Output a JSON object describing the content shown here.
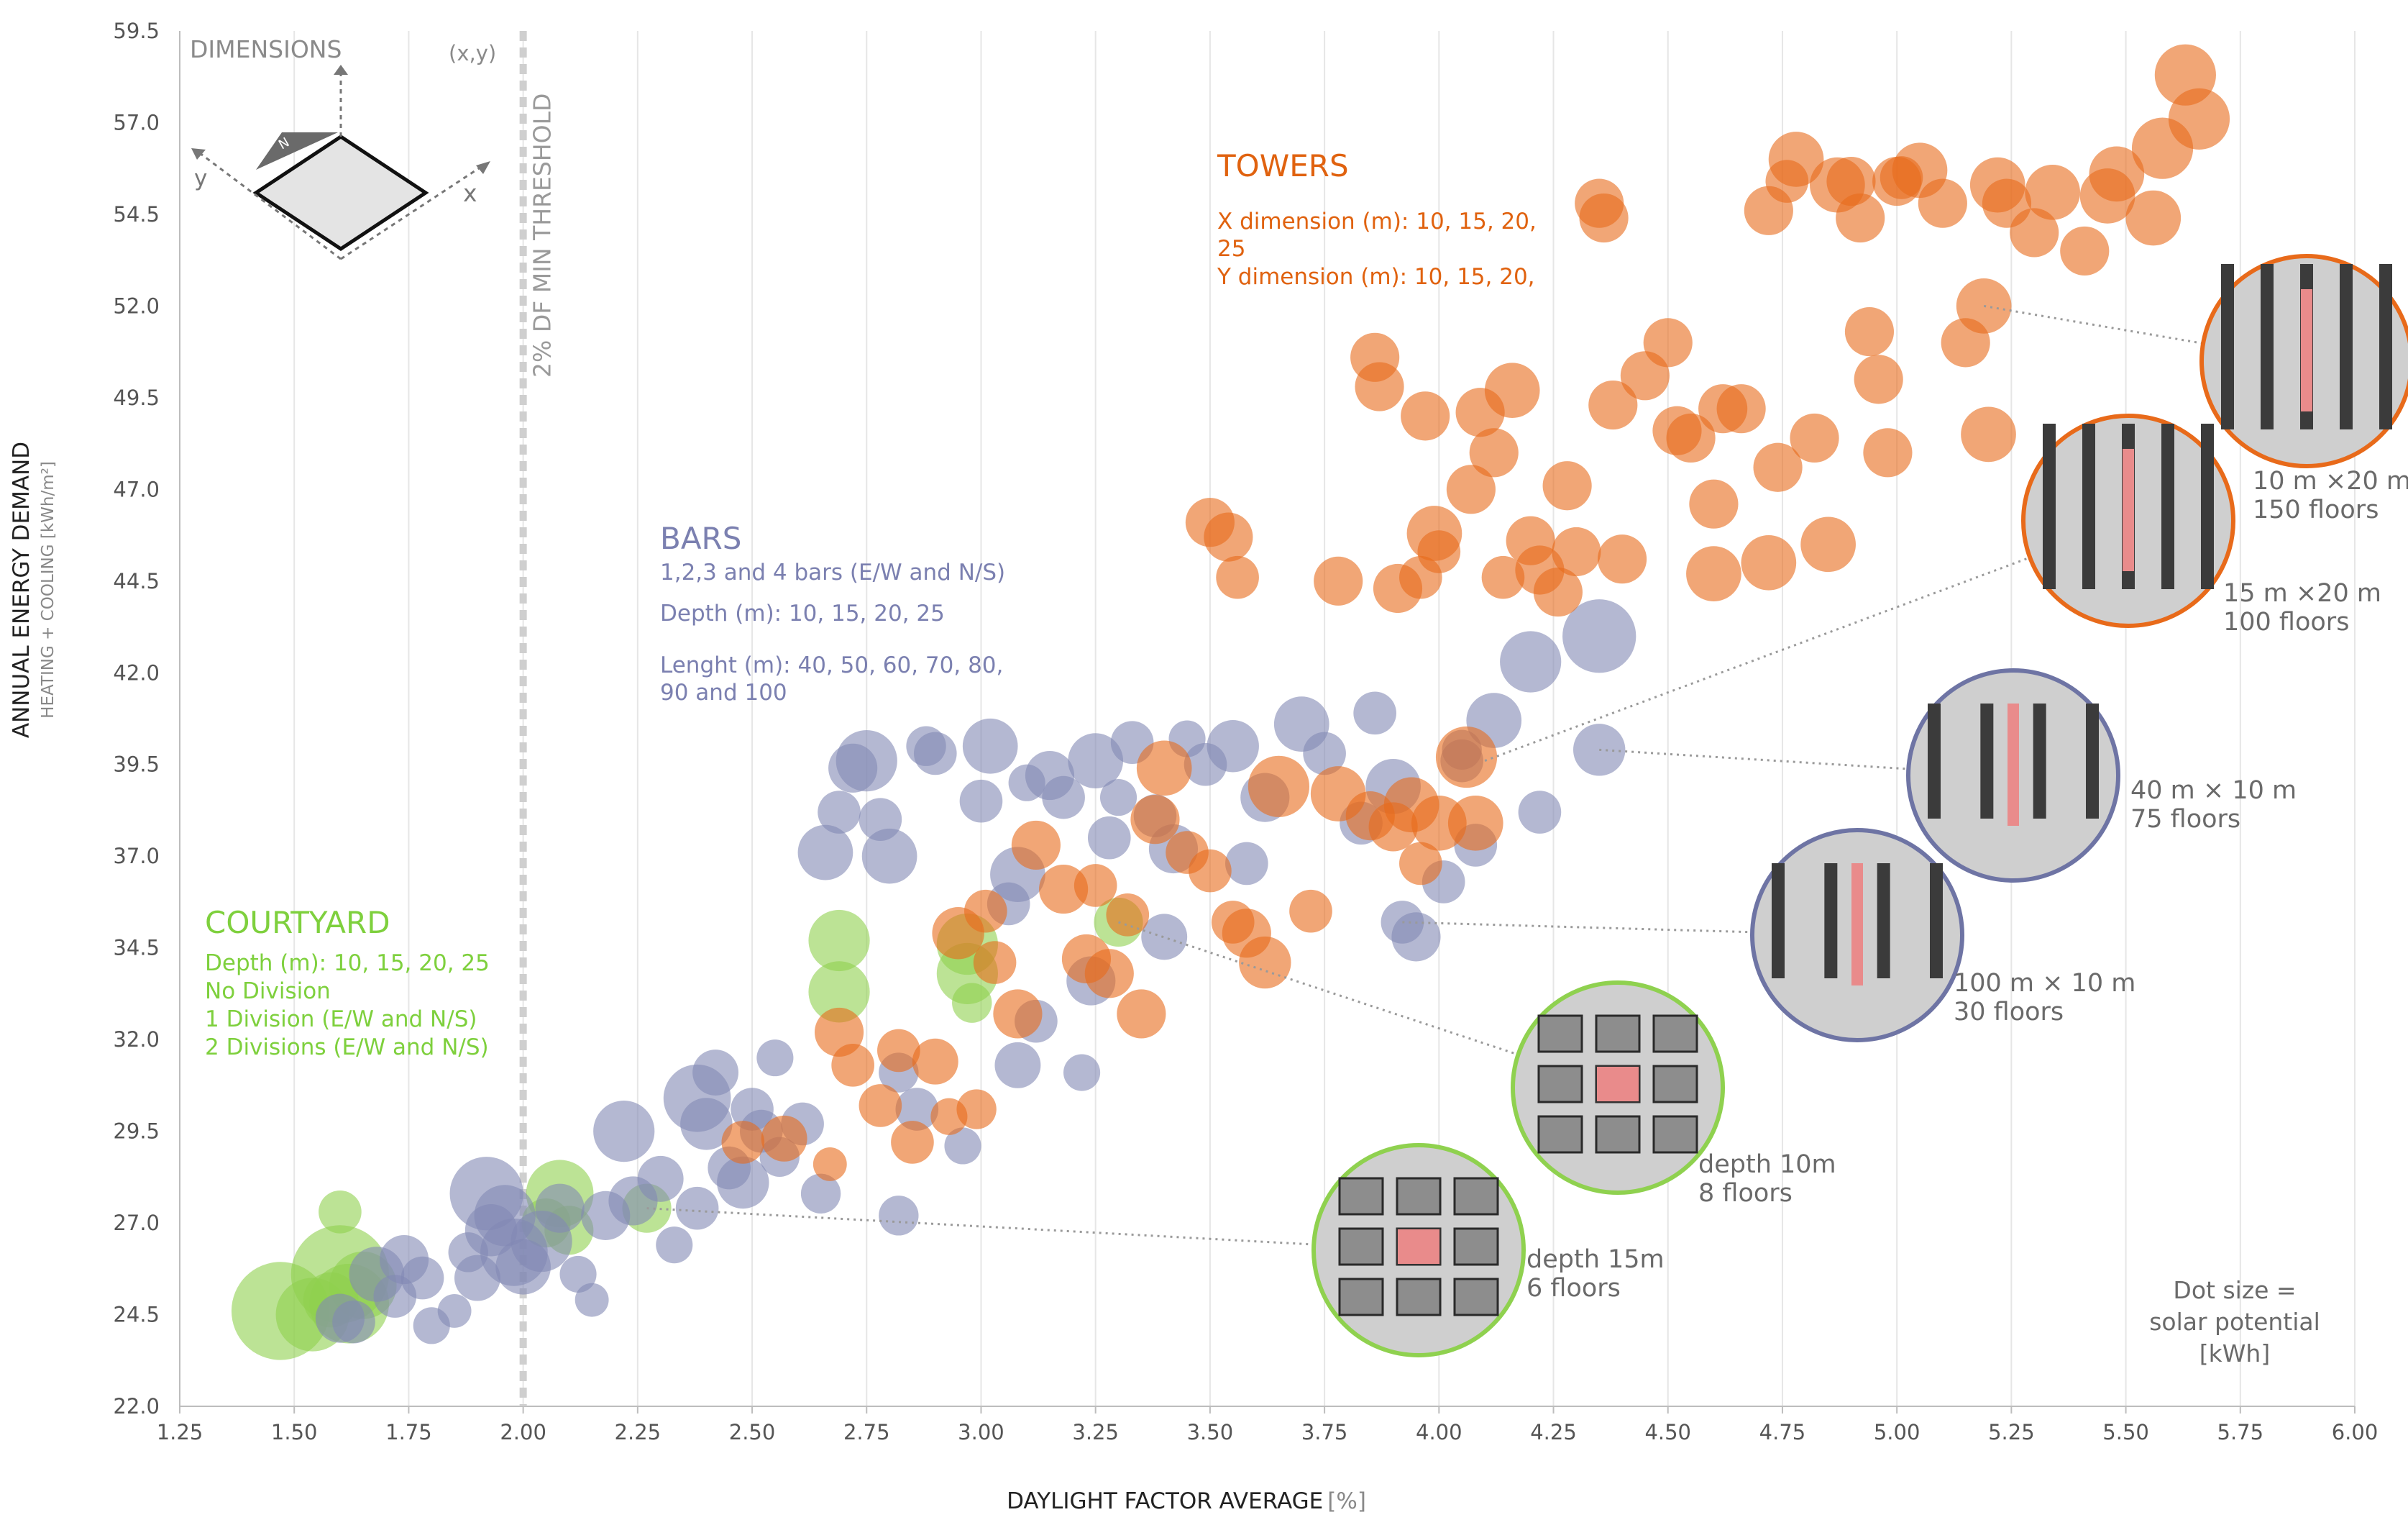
{
  "chart_data": {
    "type": "scatter",
    "xlabel": "DAYLIGHT FACTOR AVERAGE",
    "xlabel_unit": "[%]",
    "ylabel": "ANNUAL ENERGY DEMAND",
    "ylabel_sub": "HEATING + COOLING [kWh/m²]",
    "xlim": [
      1.25,
      6.0
    ],
    "ylim": [
      22.0,
      59.5
    ],
    "x_ticks": [
      "1.25",
      "1.50",
      "1.75",
      "2.00",
      "2.25",
      "2.50",
      "2.75",
      "3.00",
      "3.25",
      "3.50",
      "3.75",
      "4.00",
      "4.25",
      "4.50",
      "4.75",
      "5.00",
      "5.25",
      "5.50",
      "5.75",
      "6.00"
    ],
    "y_ticks": [
      "22.0",
      "24.5",
      "27.0",
      "29.5",
      "32.0",
      "34.5",
      "37.0",
      "39.5",
      "42.0",
      "44.5",
      "47.0",
      "49.5",
      "52.0",
      "54.5",
      "57.0",
      "59.5"
    ],
    "grid": "vertical",
    "threshold": {
      "x": 2.0,
      "label": "2% DF MIN THRESHOLD"
    },
    "dimensions_label": "DIMENSIONS",
    "xy_label": "(x,y)",
    "axis_x_letter": "x",
    "axis_y_letter": "y",
    "north_letter": "N",
    "groups": [
      {
        "name": "COURTYARD",
        "color": "#8fd14f",
        "lines": [
          "Depth (m): 10, 15, 20, 25",
          "No Division",
          "1 Division (E/W and N/S)",
          "2 Divisions (E/W and N/S)"
        ]
      },
      {
        "name": "BARS",
        "color": "#8288b4",
        "lines": [
          "1,2,3 and 4 bars (E/W and N/S)",
          "Depth (m): 10, 15, 20, 25",
          "Lenght (m): 40, 50, 60, 70, 80,",
          "90  and 100"
        ]
      },
      {
        "name": "TOWERS",
        "color": "#e86a1a",
        "lines": [
          "X dimension (m): 10, 15, 20,",
          "25",
          "Y dimension (m): 10, 15, 20,"
        ]
      }
    ],
    "series": [
      {
        "name": "COURTYARD",
        "color": "#8fd14f",
        "points": [
          [
            1.47,
            24.6,
            32
          ],
          [
            1.54,
            24.5,
            24
          ],
          [
            1.6,
            25.6,
            32
          ],
          [
            1.62,
            24.8,
            26
          ],
          [
            1.65,
            25.3,
            22
          ],
          [
            1.6,
            27.3,
            14
          ],
          [
            1.58,
            24.9,
            18
          ],
          [
            2.08,
            27.8,
            22
          ],
          [
            2.1,
            26.8,
            16
          ],
          [
            2.05,
            27.0,
            16
          ],
          [
            2.27,
            27.4,
            16
          ],
          [
            2.69,
            34.7,
            20
          ],
          [
            2.69,
            33.3,
            20
          ],
          [
            2.97,
            34.6,
            20
          ],
          [
            2.97,
            33.8,
            20
          ],
          [
            2.98,
            33.0,
            13
          ],
          [
            3.3,
            35.2,
            16
          ]
        ]
      },
      {
        "name": "BARS",
        "color": "#8288b4",
        "points": [
          [
            1.6,
            24.4,
            16
          ],
          [
            1.63,
            24.3,
            14
          ],
          [
            1.68,
            25.6,
            18
          ],
          [
            1.74,
            26.0,
            16
          ],
          [
            1.72,
            25.0,
            14
          ],
          [
            1.78,
            25.5,
            14
          ],
          [
            1.8,
            24.2,
            12
          ],
          [
            1.85,
            24.6,
            11
          ],
          [
            1.88,
            26.2,
            13
          ],
          [
            1.9,
            25.5,
            15
          ],
          [
            1.93,
            26.8,
            17
          ],
          [
            1.92,
            27.8,
            24
          ],
          [
            1.96,
            27.2,
            20
          ],
          [
            1.98,
            26.2,
            22
          ],
          [
            2.0,
            25.8,
            18
          ],
          [
            2.04,
            26.5,
            20
          ],
          [
            2.08,
            27.4,
            16
          ],
          [
            2.12,
            25.6,
            12
          ],
          [
            2.15,
            24.9,
            11
          ],
          [
            2.18,
            27.2,
            16
          ],
          [
            2.22,
            29.5,
            20
          ],
          [
            2.24,
            27.6,
            16
          ],
          [
            2.3,
            28.2,
            15
          ],
          [
            2.33,
            26.4,
            12
          ],
          [
            2.38,
            30.4,
            22
          ],
          [
            2.38,
            27.4,
            14
          ],
          [
            2.4,
            29.7,
            17
          ],
          [
            2.42,
            31.1,
            15
          ],
          [
            2.45,
            28.5,
            14
          ],
          [
            2.48,
            28.1,
            17
          ],
          [
            2.5,
            30.1,
            14
          ],
          [
            2.52,
            29.5,
            14
          ],
          [
            2.55,
            31.5,
            12
          ],
          [
            2.56,
            28.8,
            13
          ],
          [
            2.61,
            29.7,
            14
          ],
          [
            2.65,
            27.8,
            13
          ],
          [
            2.66,
            37.1,
            18
          ],
          [
            2.69,
            38.2,
            14
          ],
          [
            2.72,
            39.4,
            16
          ],
          [
            2.75,
            39.6,
            20
          ],
          [
            2.78,
            38.0,
            14
          ],
          [
            2.8,
            37.0,
            18
          ],
          [
            2.82,
            31.1,
            13
          ],
          [
            2.82,
            27.2,
            13
          ],
          [
            2.86,
            30.1,
            14
          ],
          [
            2.88,
            40.0,
            13
          ],
          [
            2.9,
            39.8,
            14
          ],
          [
            2.96,
            29.1,
            12
          ],
          [
            3.0,
            38.5,
            14
          ],
          [
            3.02,
            40.0,
            18
          ],
          [
            3.06,
            35.7,
            14
          ],
          [
            3.08,
            36.5,
            18
          ],
          [
            3.08,
            31.3,
            15
          ],
          [
            3.1,
            39.0,
            12
          ],
          [
            3.12,
            32.5,
            14
          ],
          [
            3.15,
            39.2,
            16
          ],
          [
            3.18,
            38.6,
            14
          ],
          [
            3.22,
            31.1,
            12
          ],
          [
            3.24,
            33.6,
            16
          ],
          [
            3.25,
            39.6,
            18
          ],
          [
            3.28,
            37.5,
            14
          ],
          [
            3.3,
            38.6,
            12
          ],
          [
            3.33,
            40.1,
            14
          ],
          [
            3.38,
            38.1,
            14
          ],
          [
            3.4,
            34.8,
            15
          ],
          [
            3.42,
            37.2,
            16
          ],
          [
            3.45,
            40.2,
            12
          ],
          [
            3.49,
            39.5,
            14
          ],
          [
            3.55,
            40.0,
            17
          ],
          [
            3.58,
            36.8,
            14
          ],
          [
            3.62,
            38.6,
            16
          ],
          [
            3.7,
            40.6,
            18
          ],
          [
            3.75,
            39.8,
            14
          ],
          [
            3.83,
            37.9,
            14
          ],
          [
            3.86,
            40.9,
            14
          ],
          [
            3.9,
            38.9,
            18
          ],
          [
            3.92,
            35.2,
            14
          ],
          [
            3.95,
            34.8,
            16
          ],
          [
            4.01,
            36.3,
            14
          ],
          [
            4.05,
            39.6,
            14
          ],
          [
            4.05,
            39.9,
            13
          ],
          [
            4.08,
            37.3,
            14
          ],
          [
            4.12,
            40.7,
            18
          ],
          [
            4.2,
            42.3,
            20
          ],
          [
            4.22,
            38.2,
            14
          ],
          [
            4.35,
            39.9,
            17
          ],
          [
            4.35,
            43.0,
            24
          ]
        ]
      },
      {
        "name": "TOWERS",
        "color": "#e86a1a",
        "points": [
          [
            2.48,
            29.2,
            14
          ],
          [
            2.57,
            29.3,
            15
          ],
          [
            2.67,
            28.6,
            11
          ],
          [
            2.69,
            32.2,
            16
          ],
          [
            2.72,
            31.3,
            14
          ],
          [
            2.78,
            30.2,
            14
          ],
          [
            2.82,
            31.7,
            14
          ],
          [
            2.85,
            29.2,
            14
          ],
          [
            2.9,
            31.4,
            15
          ],
          [
            2.93,
            29.9,
            12
          ],
          [
            2.95,
            34.9,
            17
          ],
          [
            2.99,
            30.1,
            13
          ],
          [
            3.01,
            35.5,
            14
          ],
          [
            3.03,
            34.1,
            14
          ],
          [
            3.08,
            32.7,
            16
          ],
          [
            3.12,
            37.3,
            16
          ],
          [
            3.18,
            36.1,
            16
          ],
          [
            3.23,
            34.2,
            16
          ],
          [
            3.25,
            36.2,
            14
          ],
          [
            3.28,
            33.8,
            16
          ],
          [
            3.32,
            35.4,
            14
          ],
          [
            3.35,
            32.7,
            16
          ],
          [
            3.38,
            38.0,
            16
          ],
          [
            3.4,
            39.4,
            18
          ],
          [
            3.45,
            37.1,
            14
          ],
          [
            3.5,
            36.6,
            14
          ],
          [
            3.55,
            35.2,
            14
          ],
          [
            3.58,
            34.9,
            16
          ],
          [
            3.62,
            34.1,
            17
          ],
          [
            3.65,
            38.9,
            20
          ],
          [
            3.72,
            35.5,
            14
          ],
          [
            3.78,
            38.7,
            18
          ],
          [
            3.85,
            38.1,
            16
          ],
          [
            3.9,
            37.8,
            16
          ],
          [
            3.94,
            38.4,
            18
          ],
          [
            3.96,
            36.8,
            14
          ],
          [
            4.0,
            37.9,
            18
          ],
          [
            4.06,
            39.7,
            20
          ],
          [
            4.08,
            37.9,
            18
          ],
          [
            3.5,
            46.1,
            16
          ],
          [
            3.54,
            45.7,
            16
          ],
          [
            3.56,
            44.6,
            14
          ],
          [
            3.78,
            44.5,
            16
          ],
          [
            3.86,
            50.6,
            16
          ],
          [
            3.87,
            49.8,
            16
          ],
          [
            3.91,
            44.3,
            16
          ],
          [
            3.96,
            44.6,
            14
          ],
          [
            3.97,
            49.0,
            16
          ],
          [
            3.99,
            45.8,
            18
          ],
          [
            4.0,
            45.3,
            14
          ],
          [
            4.07,
            47.0,
            16
          ],
          [
            4.09,
            49.1,
            16
          ],
          [
            4.12,
            48.0,
            16
          ],
          [
            4.14,
            44.6,
            14
          ],
          [
            4.16,
            49.7,
            18
          ],
          [
            4.2,
            45.6,
            16
          ],
          [
            4.22,
            44.8,
            16
          ],
          [
            4.26,
            44.2,
            16
          ],
          [
            4.28,
            47.1,
            16
          ],
          [
            4.3,
            45.3,
            16
          ],
          [
            4.35,
            54.8,
            16
          ],
          [
            4.36,
            54.4,
            16
          ],
          [
            4.38,
            49.3,
            16
          ],
          [
            4.4,
            45.1,
            16
          ],
          [
            4.45,
            50.1,
            16
          ],
          [
            4.5,
            51.0,
            16
          ],
          [
            4.52,
            48.6,
            16
          ],
          [
            4.55,
            48.4,
            16
          ],
          [
            4.6,
            44.7,
            18
          ],
          [
            4.6,
            46.6,
            16
          ],
          [
            4.62,
            49.2,
            16
          ],
          [
            4.66,
            49.2,
            16
          ],
          [
            4.72,
            54.6,
            16
          ],
          [
            4.72,
            45.0,
            18
          ],
          [
            4.74,
            47.6,
            16
          ],
          [
            4.76,
            55.4,
            14
          ],
          [
            4.78,
            56.0,
            18
          ],
          [
            4.82,
            48.4,
            16
          ],
          [
            4.85,
            45.5,
            18
          ],
          [
            4.87,
            55.3,
            18
          ],
          [
            4.9,
            55.4,
            16
          ],
          [
            4.92,
            54.4,
            16
          ],
          [
            4.94,
            51.3,
            16
          ],
          [
            4.96,
            50.0,
            16
          ],
          [
            4.98,
            48.0,
            16
          ],
          [
            5.0,
            55.4,
            16
          ],
          [
            5.01,
            55.5,
            14
          ],
          [
            5.05,
            55.7,
            18
          ],
          [
            5.1,
            54.8,
            16
          ],
          [
            5.15,
            51.0,
            16
          ],
          [
            5.19,
            52.0,
            18
          ],
          [
            5.2,
            48.5,
            18
          ],
          [
            5.22,
            55.3,
            18
          ],
          [
            5.24,
            54.8,
            16
          ],
          [
            5.3,
            54.0,
            16
          ],
          [
            5.34,
            55.1,
            18
          ],
          [
            5.41,
            53.5,
            16
          ],
          [
            5.46,
            55.0,
            18
          ],
          [
            5.48,
            55.6,
            18
          ],
          [
            5.56,
            54.4,
            18
          ],
          [
            5.58,
            56.3,
            20
          ],
          [
            5.63,
            58.3,
            20
          ],
          [
            5.66,
            57.1,
            20
          ]
        ]
      }
    ],
    "callouts": [
      {
        "name": "tower-10x20",
        "group": "TOWERS",
        "size_label": "10 m ×20 m",
        "floors_label": "150 floors",
        "ring_color": "#e86a1a",
        "point": [
          5.19,
          52.0
        ]
      },
      {
        "name": "tower-15x20",
        "group": "TOWERS",
        "size_label": "15 m ×20 m",
        "floors_label": "100 floors",
        "ring_color": "#e86a1a",
        "point": [
          4.1,
          39.6
        ]
      },
      {
        "name": "bars-40x10",
        "group": "BARS",
        "size_label": "40 m × 10 m",
        "floors_label": "75 floors",
        "ring_color": "#6e74a4",
        "point": [
          4.35,
          39.9
        ]
      },
      {
        "name": "bars-100x10",
        "group": "BARS",
        "size_label": "100 m × 10 m",
        "floors_label": "30 floors",
        "ring_color": "#6e74a4",
        "point": [
          3.92,
          35.2
        ]
      },
      {
        "name": "courtyard-depth10",
        "group": "COURTYARD",
        "size_label": "depth 10m",
        "floors_label": "8 floors",
        "ring_color": "#8fd14f",
        "point": [
          3.3,
          35.2
        ]
      },
      {
        "name": "courtyard-depth15",
        "group": "COURTYARD",
        "size_label": "depth 15m",
        "floors_label": "6 floors",
        "ring_color": "#8fd14f",
        "point": [
          2.27,
          27.4
        ]
      }
    ],
    "legend_note": [
      "Dot size =",
      "solar potential",
      "[kWh]"
    ]
  }
}
